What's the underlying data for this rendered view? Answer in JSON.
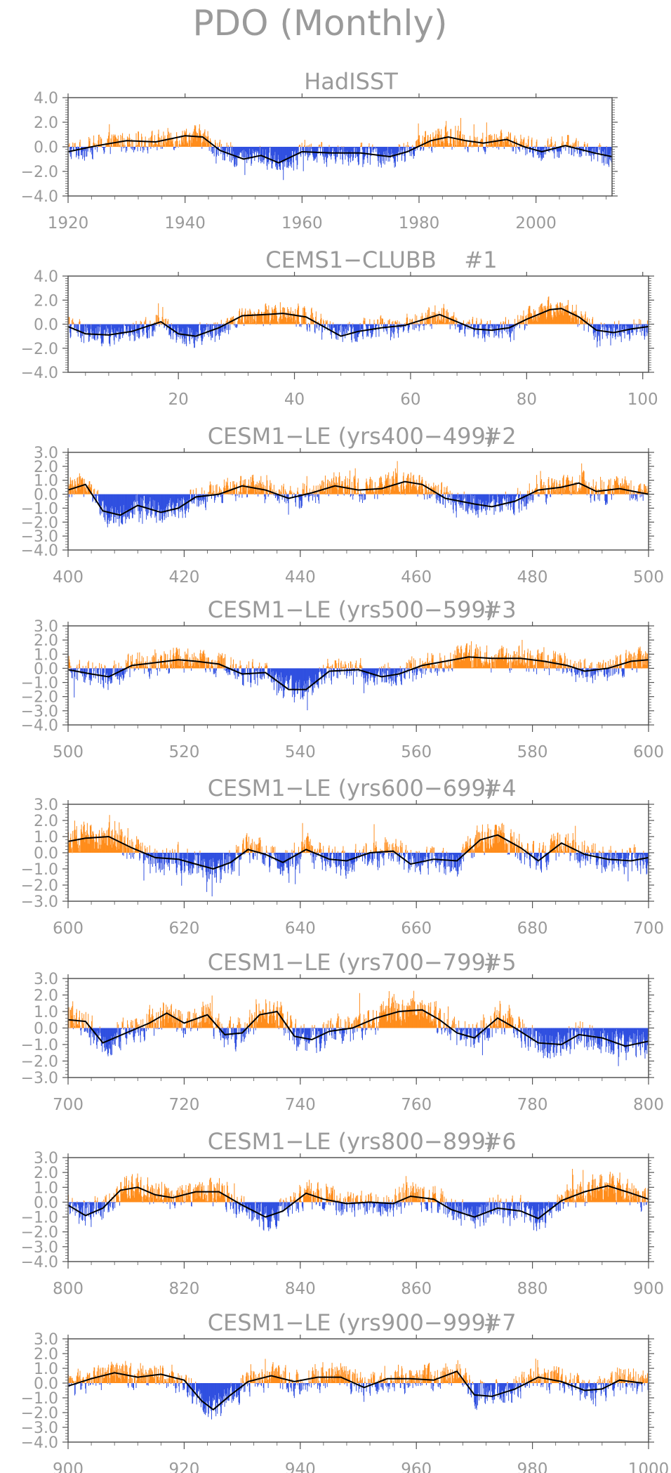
{
  "figure": {
    "title": "PDO (Monthly)",
    "colors": {
      "positive": "#ff8c1a",
      "negative": "#2f4fe0",
      "smooth": "#000000",
      "frame": "#555555",
      "text": "#9a9a9a"
    }
  },
  "chart_data": [
    {
      "type": "area",
      "title": "HadISST",
      "x_range": [
        1920,
        2013
      ],
      "xticks": [
        1920,
        1940,
        1960,
        1980,
        2000
      ],
      "ylim": [
        -4,
        4
      ],
      "yticks": [
        -4,
        -2,
        0,
        2,
        4
      ],
      "ytick_labels": [
        "−4.0",
        "−2.0",
        "0.0",
        "2.0",
        "4.0"
      ],
      "smooth": [
        [
          1920,
          -0.4
        ],
        [
          1925,
          0.1
        ],
        [
          1930,
          0.5
        ],
        [
          1935,
          0.4
        ],
        [
          1940,
          0.9
        ],
        [
          1943,
          0.8
        ],
        [
          1946,
          -0.3
        ],
        [
          1950,
          -1.0
        ],
        [
          1953,
          -0.7
        ],
        [
          1956,
          -1.3
        ],
        [
          1960,
          -0.4
        ],
        [
          1965,
          -0.5
        ],
        [
          1970,
          -0.5
        ],
        [
          1975,
          -0.8
        ],
        [
          1978,
          -0.4
        ],
        [
          1982,
          0.5
        ],
        [
          1985,
          0.8
        ],
        [
          1988,
          0.5
        ],
        [
          1991,
          0.3
        ],
        [
          1995,
          0.6
        ],
        [
          1998,
          0.0
        ],
        [
          2001,
          -0.4
        ],
        [
          2005,
          0.1
        ],
        [
          2010,
          -0.5
        ],
        [
          2013,
          -0.8
        ]
      ]
    },
    {
      "type": "area",
      "title": "CEMS1−CLUBB",
      "title_tag": "#1",
      "x_range": [
        1,
        101
      ],
      "xticks": [
        20,
        40,
        60,
        80,
        100
      ],
      "ylim": [
        -4,
        4
      ],
      "yticks": [
        -4,
        -2,
        0,
        2,
        4
      ],
      "ytick_labels": [
        "−4.0",
        "−2.0",
        "0.0",
        "2.0",
        "4.0"
      ],
      "smooth": [
        [
          1,
          -0.2
        ],
        [
          4,
          -0.8
        ],
        [
          8,
          -0.9
        ],
        [
          12,
          -0.6
        ],
        [
          17,
          0.2
        ],
        [
          20,
          -0.8
        ],
        [
          23,
          -1.0
        ],
        [
          27,
          -0.3
        ],
        [
          31,
          0.7
        ],
        [
          35,
          0.8
        ],
        [
          38,
          0.9
        ],
        [
          42,
          0.6
        ],
        [
          45,
          -0.2
        ],
        [
          48,
          -1.0
        ],
        [
          51,
          -0.6
        ],
        [
          55,
          -0.3
        ],
        [
          59,
          -0.1
        ],
        [
          63,
          0.5
        ],
        [
          65,
          0.8
        ],
        [
          68,
          0.2
        ],
        [
          71,
          -0.4
        ],
        [
          74,
          -0.5
        ],
        [
          77,
          -0.3
        ],
        [
          80,
          0.4
        ],
        [
          84,
          1.2
        ],
        [
          86,
          1.3
        ],
        [
          89,
          0.6
        ],
        [
          92,
          -0.5
        ],
        [
          95,
          -0.7
        ],
        [
          98,
          -0.4
        ],
        [
          101,
          -0.2
        ]
      ]
    },
    {
      "type": "area",
      "title": "CESM1−LE (yrs400−499)",
      "title_tag": "#2",
      "x_range": [
        400,
        500
      ],
      "xticks": [
        400,
        420,
        440,
        460,
        480,
        500
      ],
      "ylim": [
        -4,
        3
      ],
      "yticks": [
        -4,
        -3,
        -2,
        -1,
        0,
        1,
        2,
        3
      ],
      "ytick_labels": [
        "−4.0",
        "−3.0",
        "−2.0",
        "−1.0",
        "0.0",
        "1.0",
        "2.0",
        "3.0"
      ],
      "smooth": [
        [
          400,
          0.3
        ],
        [
          403,
          0.7
        ],
        [
          406,
          -1.2
        ],
        [
          409,
          -1.5
        ],
        [
          412,
          -0.8
        ],
        [
          416,
          -1.3
        ],
        [
          419,
          -1.0
        ],
        [
          422,
          -0.2
        ],
        [
          426,
          0.0
        ],
        [
          430,
          0.6
        ],
        [
          434,
          0.3
        ],
        [
          438,
          -0.3
        ],
        [
          442,
          0.1
        ],
        [
          446,
          0.6
        ],
        [
          450,
          0.3
        ],
        [
          454,
          0.4
        ],
        [
          458,
          0.9
        ],
        [
          461,
          0.7
        ],
        [
          465,
          -0.3
        ],
        [
          470,
          -0.7
        ],
        [
          473,
          -0.9
        ],
        [
          477,
          -0.5
        ],
        [
          481,
          0.3
        ],
        [
          485,
          0.5
        ],
        [
          488,
          0.8
        ],
        [
          491,
          0.2
        ],
        [
          495,
          0.4
        ],
        [
          500,
          0.0
        ]
      ]
    },
    {
      "type": "area",
      "title": "CESM1−LE (yrs500−599)",
      "title_tag": "#3",
      "x_range": [
        500,
        600
      ],
      "xticks": [
        500,
        520,
        540,
        560,
        580,
        600
      ],
      "ylim": [
        -4,
        3
      ],
      "yticks": [
        -4,
        -3,
        -2,
        -1,
        0,
        1,
        2,
        3
      ],
      "ytick_labels": [
        "−4.0",
        "−3.0",
        "−2.0",
        "−1.0",
        "0.0",
        "1.0",
        "2.0",
        "3.0"
      ],
      "smooth": [
        [
          500,
          -0.1
        ],
        [
          504,
          -0.4
        ],
        [
          507,
          -0.6
        ],
        [
          511,
          0.2
        ],
        [
          515,
          0.4
        ],
        [
          519,
          0.6
        ],
        [
          522,
          0.5
        ],
        [
          526,
          0.3
        ],
        [
          530,
          -0.4
        ],
        [
          534,
          -0.3
        ],
        [
          538,
          -1.5
        ],
        [
          541,
          -1.5
        ],
        [
          545,
          -0.2
        ],
        [
          550,
          -0.1
        ],
        [
          554,
          -0.6
        ],
        [
          557,
          -0.4
        ],
        [
          561,
          0.2
        ],
        [
          565,
          0.5
        ],
        [
          569,
          0.8
        ],
        [
          573,
          0.7
        ],
        [
          578,
          0.7
        ],
        [
          582,
          0.5
        ],
        [
          586,
          0.2
        ],
        [
          589,
          -0.2
        ],
        [
          593,
          0.0
        ],
        [
          597,
          0.5
        ],
        [
          600,
          0.6
        ]
      ]
    },
    {
      "type": "area",
      "title": "CESM1−LE (yrs600−699)",
      "title_tag": "#4",
      "x_range": [
        600,
        700
      ],
      "xticks": [
        600,
        620,
        640,
        660,
        680,
        700
      ],
      "ylim": [
        -3,
        3
      ],
      "yticks": [
        -3,
        -2,
        -1,
        0,
        1,
        2,
        3
      ],
      "ytick_labels": [
        "−3.0",
        "−2.0",
        "−1.0",
        "0.0",
        "1.0",
        "2.0",
        "3.0"
      ],
      "smooth": [
        [
          600,
          0.7
        ],
        [
          603,
          0.9
        ],
        [
          607,
          1.0
        ],
        [
          611,
          0.3
        ],
        [
          615,
          -0.3
        ],
        [
          619,
          -0.4
        ],
        [
          622,
          -0.7
        ],
        [
          625,
          -1.0
        ],
        [
          628,
          -0.6
        ],
        [
          631,
          0.2
        ],
        [
          634,
          -0.1
        ],
        [
          637,
          -0.6
        ],
        [
          641,
          0.2
        ],
        [
          645,
          -0.4
        ],
        [
          648,
          -0.5
        ],
        [
          652,
          0.0
        ],
        [
          656,
          0.1
        ],
        [
          659,
          -0.7
        ],
        [
          663,
          -0.4
        ],
        [
          667,
          -0.5
        ],
        [
          671,
          0.8
        ],
        [
          674,
          1.1
        ],
        [
          678,
          0.3
        ],
        [
          681,
          -0.5
        ],
        [
          685,
          0.6
        ],
        [
          689,
          -0.1
        ],
        [
          693,
          -0.4
        ],
        [
          697,
          -0.5
        ],
        [
          700,
          -0.3
        ]
      ]
    },
    {
      "type": "area",
      "title": "CESM1−LE (yrs700−799)",
      "title_tag": "#5",
      "x_range": [
        700,
        800
      ],
      "xticks": [
        700,
        720,
        740,
        760,
        780,
        800
      ],
      "ylim": [
        -3,
        3
      ],
      "yticks": [
        -3,
        -2,
        -1,
        0,
        1,
        2,
        3
      ],
      "ytick_labels": [
        "−3.0",
        "−2.0",
        "−1.0",
        "0.0",
        "1.0",
        "2.0",
        "3.0"
      ],
      "smooth": [
        [
          700,
          0.5
        ],
        [
          703,
          0.4
        ],
        [
          706,
          -0.9
        ],
        [
          710,
          -0.3
        ],
        [
          714,
          0.3
        ],
        [
          717,
          0.9
        ],
        [
          720,
          0.3
        ],
        [
          724,
          0.8
        ],
        [
          727,
          -0.4
        ],
        [
          730,
          -0.3
        ],
        [
          733,
          0.8
        ],
        [
          736,
          1.0
        ],
        [
          739,
          -0.5
        ],
        [
          742,
          -0.7
        ],
        [
          745,
          -0.2
        ],
        [
          749,
          0.0
        ],
        [
          753,
          0.6
        ],
        [
          757,
          1.0
        ],
        [
          761,
          1.1
        ],
        [
          764,
          0.5
        ],
        [
          767,
          -0.3
        ],
        [
          770,
          -0.6
        ],
        [
          774,
          0.6
        ],
        [
          777,
          0.0
        ],
        [
          781,
          -0.9
        ],
        [
          785,
          -1.0
        ],
        [
          788,
          -0.4
        ],
        [
          792,
          -0.6
        ],
        [
          796,
          -1.1
        ],
        [
          800,
          -0.8
        ]
      ]
    },
    {
      "type": "area",
      "title": "CESM1−LE (yrs800−899)",
      "title_tag": "#6",
      "x_range": [
        800,
        900
      ],
      "xticks": [
        800,
        820,
        840,
        860,
        880,
        900
      ],
      "ylim": [
        -4,
        3
      ],
      "yticks": [
        -4,
        -3,
        -2,
        -1,
        0,
        1,
        2,
        3
      ],
      "ytick_labels": [
        "−4.0",
        "−3.0",
        "−2.0",
        "−1.0",
        "0.0",
        "1.0",
        "2.0",
        "3.0"
      ],
      "smooth": [
        [
          800,
          -0.2
        ],
        [
          803,
          -0.9
        ],
        [
          806,
          -0.4
        ],
        [
          809,
          0.8
        ],
        [
          812,
          1.0
        ],
        [
          815,
          0.5
        ],
        [
          818,
          0.3
        ],
        [
          822,
          0.7
        ],
        [
          826,
          0.7
        ],
        [
          830,
          -0.2
        ],
        [
          834,
          -1.0
        ],
        [
          837,
          -0.6
        ],
        [
          841,
          0.6
        ],
        [
          844,
          0.2
        ],
        [
          848,
          -0.1
        ],
        [
          852,
          0.0
        ],
        [
          856,
          -0.1
        ],
        [
          859,
          0.4
        ],
        [
          863,
          0.2
        ],
        [
          866,
          -0.5
        ],
        [
          870,
          -1.0
        ],
        [
          874,
          -0.4
        ],
        [
          878,
          -0.6
        ],
        [
          881,
          -1.1
        ],
        [
          885,
          0.1
        ],
        [
          889,
          0.7
        ],
        [
          893,
          1.1
        ],
        [
          897,
          0.6
        ],
        [
          900,
          0.2
        ]
      ]
    },
    {
      "type": "area",
      "title": "CESM1−LE (yrs900−999)",
      "title_tag": "#7",
      "x_range": [
        900,
        1000
      ],
      "xticks": [
        900,
        920,
        940,
        960,
        980,
        1000
      ],
      "ylim": [
        -4,
        3
      ],
      "yticks": [
        -4,
        -3,
        -2,
        -1,
        0,
        1,
        2,
        3
      ],
      "ytick_labels": [
        "−4.0",
        "−3.0",
        "−2.0",
        "−1.0",
        "0.0",
        "1.0",
        "2.0",
        "3.0"
      ],
      "smooth": [
        [
          900,
          -0.2
        ],
        [
          904,
          0.3
        ],
        [
          908,
          0.7
        ],
        [
          912,
          0.4
        ],
        [
          916,
          0.6
        ],
        [
          920,
          0.2
        ],
        [
          923,
          -1.2
        ],
        [
          925,
          -1.8
        ],
        [
          928,
          -0.8
        ],
        [
          931,
          0.1
        ],
        [
          935,
          0.5
        ],
        [
          939,
          0.1
        ],
        [
          943,
          0.4
        ],
        [
          947,
          0.4
        ],
        [
          951,
          -0.3
        ],
        [
          955,
          0.3
        ],
        [
          959,
          0.3
        ],
        [
          963,
          0.2
        ],
        [
          967,
          0.8
        ],
        [
          970,
          -0.8
        ],
        [
          973,
          -0.9
        ],
        [
          977,
          -0.4
        ],
        [
          981,
          0.4
        ],
        [
          985,
          0.1
        ],
        [
          989,
          -0.5
        ],
        [
          992,
          -0.4
        ],
        [
          995,
          0.2
        ],
        [
          999,
          0.0
        ]
      ]
    }
  ]
}
